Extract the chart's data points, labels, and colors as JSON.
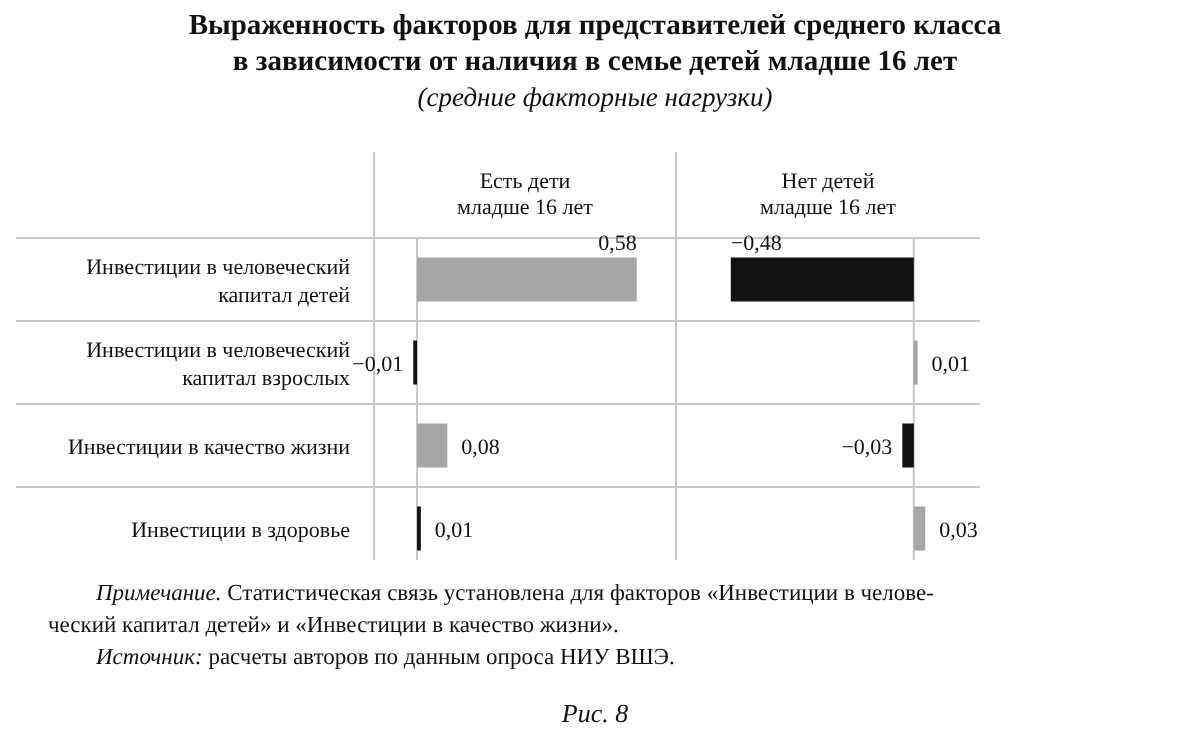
{
  "chart_data": [
    {
      "type": "other",
      "title": "Выраженность факторов для представителей среднего класса\nв зависимости от наличия в семье детей младше 16 лет",
      "subtitle": "(средние факторные нагрузки)",
      "annotations": [
        "Примечание. Статистическая связь установлена для факторов «Инвестиции в челове-\nческий капитал детей» и «Инвестиции в качество жизни».",
        "Источник: расчеты авторов по данным опроса НИУ ВШЭ.",
        "Рис. 8"
      ]
    },
    {
      "type": "bar",
      "orientation": "horizontal",
      "title": "Есть дети\nмладше 16 лет",
      "categories": [
        "Инвестиции в человеческий\nкапитал детей",
        "Инвестиции в человеческий\nкапитал взрослых",
        "Инвестиции в качество жизни",
        "Инвестиции в здоровье"
      ],
      "values": [
        0.58,
        -0.01,
        0.08,
        0.01
      ],
      "colors": [
        "#a6a6a6",
        "#111111",
        "#a6a6a6",
        "#111111"
      ],
      "value_labels": [
        "0,58",
        "−0,01",
        "0,08",
        "0,01"
      ]
    },
    {
      "type": "bar",
      "orientation": "horizontal",
      "title": "Нет детей\nмладше 16 лет",
      "categories": [
        null,
        null,
        null,
        null
      ],
      "values": [
        -0.48,
        0.01,
        -0.03,
        0.03
      ],
      "colors": [
        "#111111",
        "#a6a6a6",
        "#111111",
        "#a6a6a6"
      ],
      "value_labels": [
        "−0,48",
        "0,01",
        "−0,03",
        "0,03"
      ]
    }
  ]
}
